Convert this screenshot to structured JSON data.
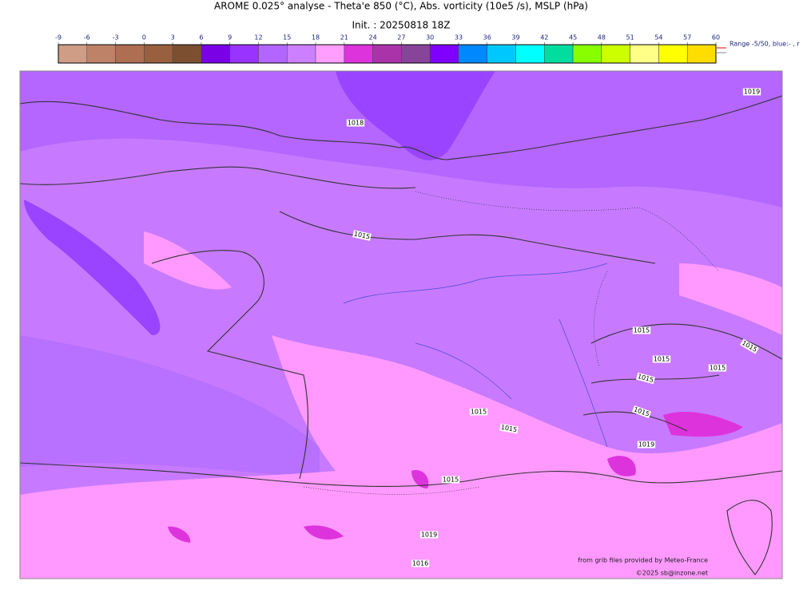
{
  "header": {
    "title": "AROME 0.025° analyse - Theta'e 850 (°C), Abs. vorticity (10e5 /s), MSLP (hPa)",
    "init": "Init. : 20250818 18Z"
  },
  "colorbar": {
    "ticks": [
      -9,
      -6,
      -3,
      0,
      3,
      6,
      9,
      12,
      15,
      18,
      21,
      24,
      27,
      30,
      33,
      36,
      39,
      42,
      45,
      48,
      51,
      54,
      57,
      60
    ],
    "colors": [
      "#cf9c86",
      "#bd8268",
      "#ad6e52",
      "#98603f",
      "#7d4f31",
      "#7a00e6",
      "#9933ff",
      "#b266ff",
      "#cc80ff",
      "#ff9eff",
      "#dd33dd",
      "#aa33aa",
      "#884499",
      "#7f00ff",
      "#0088ff",
      "#00c8ff",
      "#00ffff",
      "#00dd9e",
      "#88ff00",
      "#ccff00",
      "#ffff88",
      "#ffff00",
      "#ffdd00"
    ],
    "note": "Range -5/50, blue:- , r"
  },
  "isobar_labels": [
    "1019",
    "1018",
    "1015",
    "1015",
    "1015",
    "1015",
    "1015",
    "1015",
    "1015",
    "1015",
    "1015",
    "1019",
    "1015",
    "1019",
    "1016"
  ],
  "credits": {
    "source": "from grib files provided by Meteo-France",
    "copyright": "©2025 sb@inzone.net"
  }
}
